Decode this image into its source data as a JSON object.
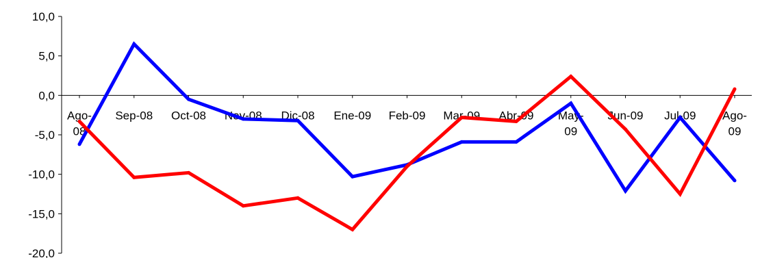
{
  "chart_data": {
    "type": "line",
    "categories": [
      [
        "Ago-",
        "08"
      ],
      [
        "Sep-08"
      ],
      [
        "Oct-08"
      ],
      [
        "Nov-08"
      ],
      [
        "Dic-08"
      ],
      [
        "Ene-09"
      ],
      [
        "Feb-09"
      ],
      [
        "Mar-09"
      ],
      [
        "Abr-09"
      ],
      [
        "May-",
        "09"
      ],
      [
        "Jun-09"
      ],
      [
        "Jul-09"
      ],
      [
        "Ago-",
        "09"
      ]
    ],
    "y_ticks": [
      "10,0",
      "5,0",
      "0,0",
      "-5,0",
      "-10,0",
      "-15,0",
      "-20,0"
    ],
    "ylim": [
      -20,
      10
    ],
    "grid": false,
    "series": [
      {
        "color": "#0000ff",
        "values": [
          -6.2,
          6.5,
          -0.5,
          -3.0,
          -3.2,
          -10.3,
          -8.8,
          -5.9,
          -5.9,
          -1.0,
          -12.1,
          -2.8,
          -10.8
        ]
      },
      {
        "color": "#ff0000",
        "values": [
          -3.3,
          -10.4,
          -9.8,
          -14.0,
          -13.0,
          -17.0,
          -9.0,
          -2.8,
          -3.3,
          2.4,
          -4.3,
          -12.5,
          0.8
        ]
      }
    ]
  }
}
